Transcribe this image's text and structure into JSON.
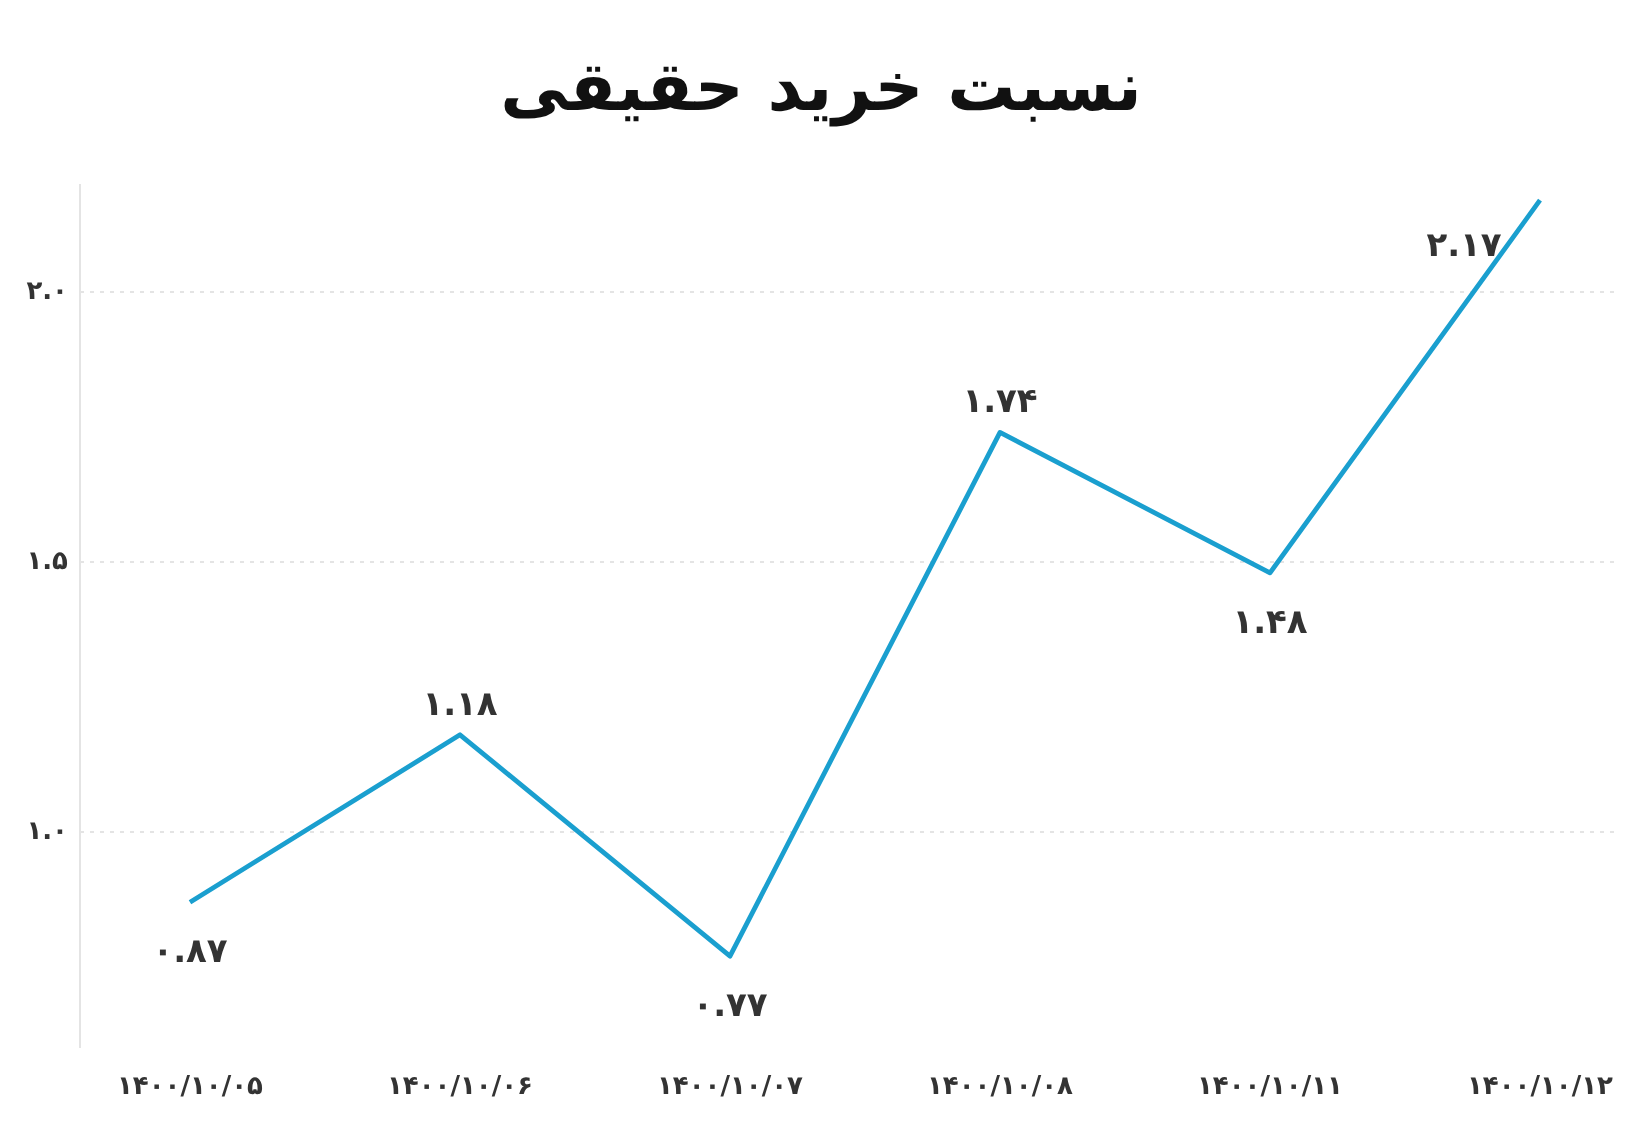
{
  "chart_data": {
    "type": "line",
    "title": "نسبت خرید حقیقی",
    "categories": [
      "۱۴۰۰/۱۰/۰۵",
      "۱۴۰۰/۱۰/۰۶",
      "۱۴۰۰/۱۰/۰۷",
      "۱۴۰۰/۱۰/۰۸",
      "۱۴۰۰/۱۰/۱۱",
      "۱۴۰۰/۱۰/۱۲"
    ],
    "values": [
      0.87,
      1.18,
      0.77,
      1.74,
      1.48,
      2.17
    ],
    "value_labels": [
      "۰.۸۷",
      "۱.۱۸",
      "۰.۷۷",
      "۱.۷۴",
      "۱.۴۸",
      "۲.۱۷"
    ],
    "color": "#1a9fcf",
    "ylim": [
      0.6,
      2.2
    ],
    "yticks": [
      {
        "value": 1.0,
        "label": "۱.۰"
      },
      {
        "value": 1.5,
        "label": "۱.۵"
      },
      {
        "value": 2.0,
        "label": "۲.۰"
      }
    ],
    "grid": "y",
    "marker": "none",
    "line_style": "solid"
  }
}
